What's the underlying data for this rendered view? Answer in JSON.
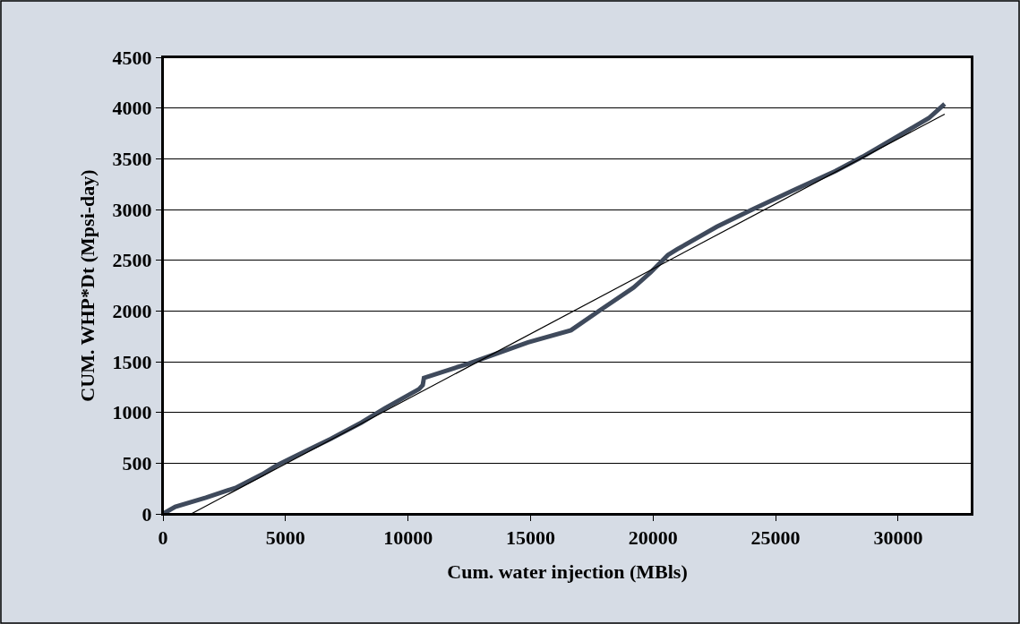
{
  "chart_data": {
    "type": "line",
    "xlabel": "Cum. water injection (MBls)",
    "ylabel": "CUM. WHP*Dt (Mpsi-day)",
    "xlim": [
      0,
      33000
    ],
    "xticks": [
      0,
      5000,
      10000,
      15000,
      20000,
      25000,
      30000
    ],
    "ylim": [
      0,
      4500
    ],
    "yticks": [
      0,
      500,
      1000,
      1500,
      2000,
      2500,
      3000,
      3500,
      4000,
      4500
    ],
    "grid": "y",
    "marker": "none",
    "series": [
      {
        "color": "#3f4a5c",
        "line_style": "solid",
        "x": [
          0,
          500,
          1750,
          3000,
          4050,
          4650,
          6000,
          6850,
          8100,
          9050,
          10450,
          10600,
          10650,
          12450,
          14900,
          16650,
          17850,
          19200,
          19900,
          20600,
          21000,
          22600,
          24050,
          25650,
          27450,
          28550,
          31250,
          31900
        ],
        "values": [
          0,
          70,
          160,
          260,
          390,
          480,
          640,
          740,
          900,
          1040,
          1230,
          1270,
          1340,
          1480,
          1690,
          1810,
          2010,
          2230,
          2380,
          2550,
          2610,
          2830,
          3000,
          3180,
          3380,
          3520,
          3900,
          4040
        ]
      },
      {
        "type": "line",
        "color": "#000000",
        "line_style": "solid",
        "x": [
          1150,
          31900
        ],
        "values": [
          0,
          3940
        ]
      }
    ]
  }
}
